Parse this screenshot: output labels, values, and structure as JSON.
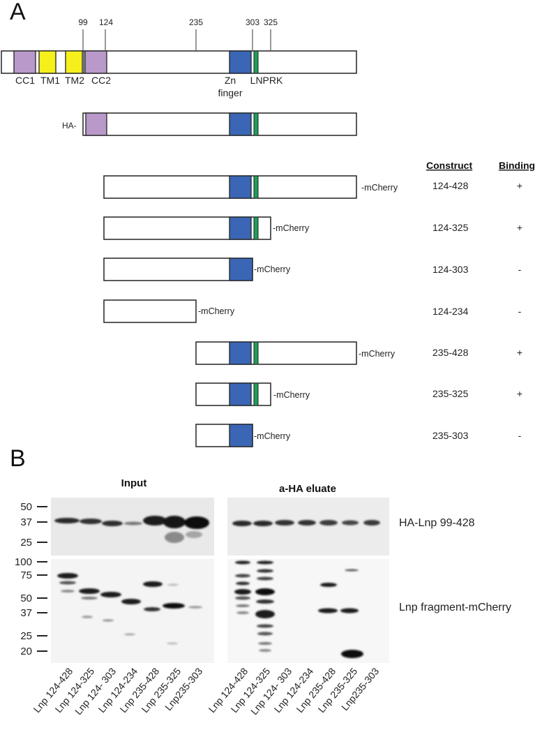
{
  "panel_a": {
    "letter": "A",
    "ticks": [
      "99",
      "124",
      "235",
      "303",
      "325"
    ],
    "domain_labels": {
      "cc1": "CC1",
      "tm1": "TM1",
      "tm2": "TM2",
      "cc2": "CC2",
      "zn_line1": "Zn",
      "zn_line2": "finger",
      "lnprk": "LNPRK"
    },
    "ha_prefix": "HA-",
    "table_header": {
      "construct": "Construct",
      "binding": "Binding"
    },
    "constructs": [
      {
        "suffix": "-mCherry",
        "range": "124-428",
        "binding": "+"
      },
      {
        "suffix": "-mCherry",
        "range": "124-325",
        "binding": "+"
      },
      {
        "suffix": "-mCherry",
        "range": "124-303",
        "binding": "-"
      },
      {
        "suffix": "-mCherry",
        "range": "124-234",
        "binding": "-"
      },
      {
        "suffix": "-mCherry",
        "range": "235-428",
        "binding": "+"
      },
      {
        "suffix": "-mCherry",
        "range": "235-325",
        "binding": "+"
      },
      {
        "suffix": "-mCherry",
        "range": "235-303",
        "binding": "-"
      }
    ],
    "colors": {
      "coiled_coil": "#b899c9",
      "transmembrane": "#f5f01c",
      "zn_finger": "#3a66b5",
      "lnprk": "#1e9e5a"
    }
  },
  "panel_b": {
    "letter": "B",
    "input_title": "Input",
    "eluate_title": "a-HA eluate",
    "top_markers": [
      "50",
      "37",
      "25"
    ],
    "bottom_markers": [
      "100",
      "75",
      "50",
      "37",
      "25",
      "20"
    ],
    "top_blot_label": "HA-Lnp 99-428",
    "bottom_blot_label": "Lnp fragment-mCherry",
    "input_lanes": [
      "Lnp 124-428",
      "Lnp 124-325",
      "Lnp 124- 303",
      "Lnp 124-234",
      "Lnp 235-428",
      "Lnp 235-325",
      "Lnp235-303"
    ],
    "eluate_lanes": [
      "Lnp 124-428",
      "Lnp 124-325",
      "Lnp 124- 303",
      "Lnp 124-234",
      "Lnp 235-428",
      "Lnp 235-325",
      "Lnp235-303"
    ]
  }
}
